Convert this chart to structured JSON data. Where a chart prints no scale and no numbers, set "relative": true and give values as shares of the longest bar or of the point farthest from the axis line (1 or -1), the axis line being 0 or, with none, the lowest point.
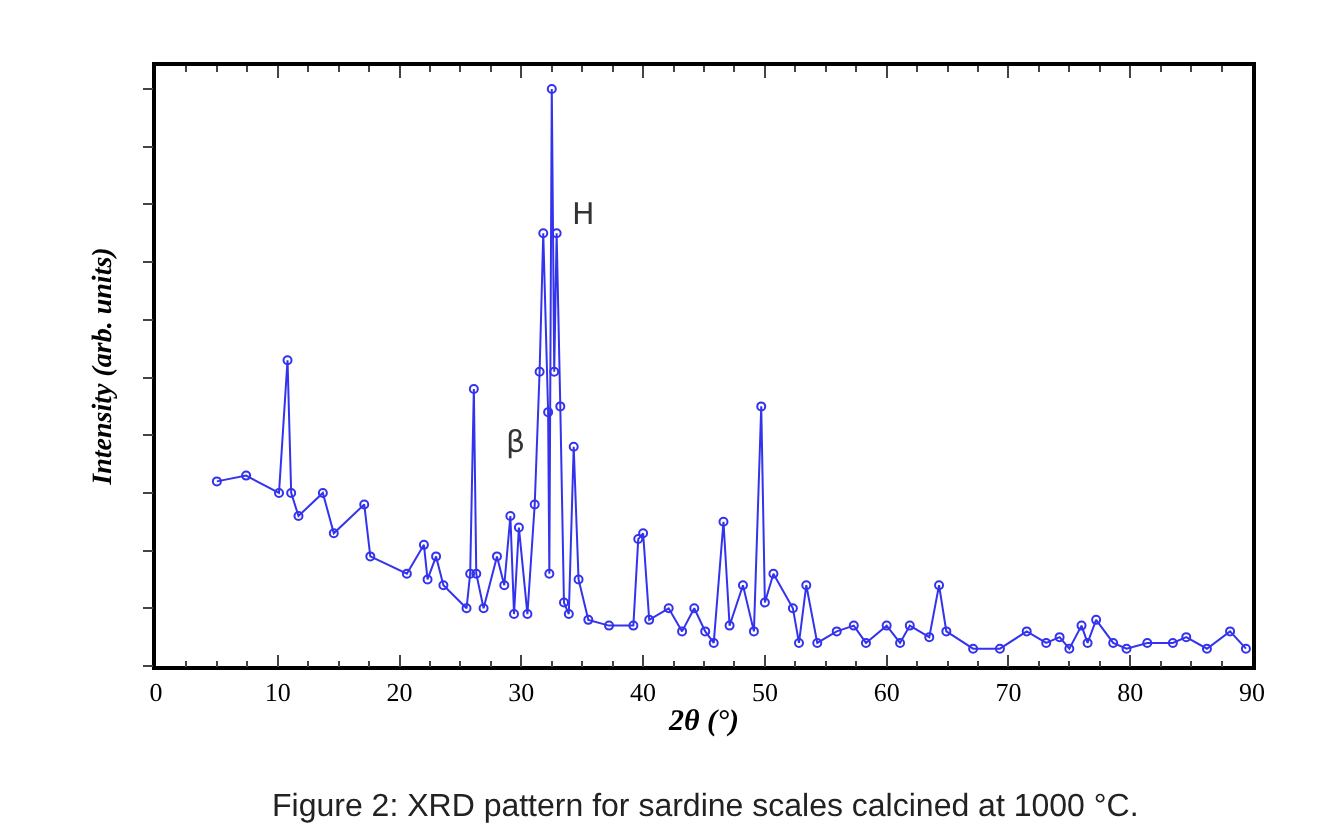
{
  "chart_data": {
    "type": "line",
    "relative": true,
    "xlabel": "2θ (°)",
    "ylabel": "Intensity (arb. units)",
    "xlim": [
      0,
      90
    ],
    "xticks": [
      0,
      10,
      20,
      30,
      40,
      50,
      60,
      70,
      80,
      90
    ],
    "marker": "circle",
    "x": [
      5.0,
      7.4,
      10.1,
      10.8,
      11.1,
      11.7,
      13.7,
      14.6,
      17.1,
      17.6,
      20.6,
      22.0,
      22.3,
      23.0,
      23.6,
      25.5,
      25.8,
      26.1,
      26.3,
      26.9,
      28.0,
      28.6,
      29.1,
      29.4,
      29.8,
      30.5,
      31.1,
      31.5,
      31.8,
      32.2,
      32.3,
      32.5,
      32.7,
      32.9,
      33.2,
      33.5,
      33.9,
      34.3,
      34.7,
      35.5,
      37.2,
      39.2,
      39.6,
      40.0,
      40.5,
      42.1,
      43.2,
      44.2,
      45.1,
      45.8,
      46.6,
      47.1,
      48.2,
      49.1,
      49.7,
      50.0,
      50.7,
      52.3,
      52.8,
      53.4,
      54.3,
      55.9,
      57.3,
      58.3,
      60.0,
      61.1,
      61.9,
      63.5,
      64.3,
      64.9,
      67.1,
      69.3,
      71.5,
      73.1,
      74.2,
      75.0,
      76.0,
      76.5,
      77.2,
      78.6,
      79.7,
      81.4,
      83.5,
      84.6,
      86.3,
      88.2,
      89.5
    ],
    "series": [
      {
        "color": "#3333ee",
        "values": [
          0.32,
          0.33,
          0.3,
          0.53,
          0.3,
          0.26,
          0.3,
          0.23,
          0.28,
          0.19,
          0.16,
          0.21,
          0.15,
          0.19,
          0.14,
          0.1,
          0.16,
          0.48,
          0.16,
          0.1,
          0.19,
          0.14,
          0.26,
          0.09,
          0.24,
          0.09,
          0.28,
          0.51,
          0.75,
          0.44,
          0.16,
          1.0,
          0.51,
          0.75,
          0.45,
          0.11,
          0.09,
          0.38,
          0.15,
          0.08,
          0.07,
          0.07,
          0.22,
          0.23,
          0.08,
          0.1,
          0.06,
          0.1,
          0.06,
          0.04,
          0.25,
          0.07,
          0.14,
          0.06,
          0.45,
          0.11,
          0.16,
          0.1,
          0.04,
          0.14,
          0.04,
          0.06,
          0.07,
          0.04,
          0.07,
          0.04,
          0.07,
          0.05,
          0.14,
          0.06,
          0.03,
          0.03,
          0.06,
          0.04,
          0.05,
          0.03,
          0.07,
          0.04,
          0.08,
          0.04,
          0.03,
          0.04,
          0.04,
          0.05,
          0.03,
          0.06,
          0.03
        ]
      }
    ],
    "annotations": [
      {
        "text": "β",
        "x": 31.3,
        "y": 0.39
      },
      {
        "text": "H",
        "x": 32.9,
        "y": 0.75
      },
      "Figure 2: XRD pattern for sardine scales calcined at 1000 °C."
    ]
  }
}
